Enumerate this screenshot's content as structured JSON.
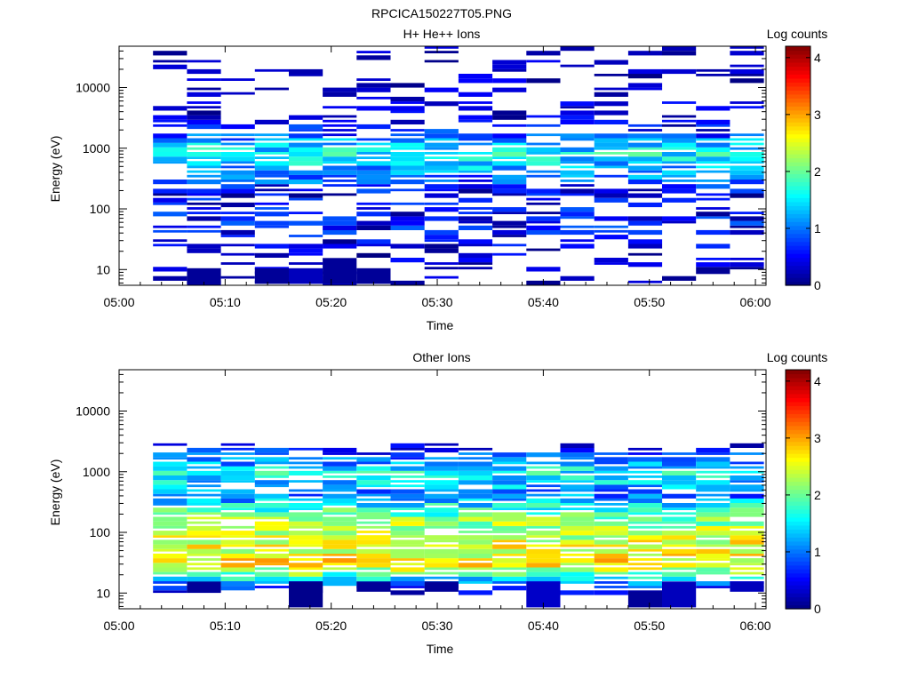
{
  "file_title": "RPCICA150227T05.PNG",
  "chart_data": [
    {
      "type": "heatmap",
      "title": "H+ He++ Ions",
      "xlabel": "Time",
      "ylabel": "Energy (eV)",
      "colorbar_label": "Log counts",
      "x_ticks": [
        "05:00",
        "05:10",
        "05:20",
        "05:30",
        "05:40",
        "05:50",
        "06:00"
      ],
      "xlim_minutes": [
        0,
        61
      ],
      "y_scale": "log",
      "y_ticks": [
        10,
        100,
        1000,
        10000
      ],
      "ylim": [
        5.5,
        48000
      ],
      "colorbar_ticks": [
        0,
        1,
        2,
        3,
        4
      ],
      "clim": [
        0,
        4.2
      ],
      "colormap": "jet",
      "time_bins_minutes": [
        3.2,
        6.4,
        9.6,
        12.8,
        16.0,
        19.2,
        22.4,
        25.6,
        28.8,
        32.0,
        35.2,
        38.4,
        41.6,
        44.8,
        48.0,
        51.2,
        54.4,
        57.6,
        60.8
      ],
      "energy_profile": {
        "energy_ev": [
          5.5,
          11,
          18,
          28,
          45,
          70,
          110,
          180,
          300,
          500,
          800,
          1200,
          1800,
          3000,
          5000,
          8000,
          13000,
          20000,
          30000,
          48000
        ],
        "log_counts": [
          0.0,
          0.1,
          0.2,
          0.3,
          0.5,
          0.5,
          0.45,
          0.4,
          0.9,
          1.3,
          1.6,
          1.3,
          0.6,
          0.25,
          0.15,
          0.1,
          0.08,
          0.07,
          0.07,
          0.0
        ]
      },
      "notes_low_energy_patches": [
        {
          "t_start": 6.4,
          "t_end": 9.6,
          "e_low": 5.8,
          "e_high": 10.5,
          "value": 0.1
        },
        {
          "t_start": 12.8,
          "t_end": 16.0,
          "e_low": 5.8,
          "e_high": 10.5,
          "value": 0.1
        },
        {
          "t_start": 16.0,
          "t_end": 19.2,
          "e_low": 5.8,
          "e_high": 10.5,
          "value": 0.25
        },
        {
          "t_start": 19.2,
          "t_end": 22.4,
          "e_low": 5.8,
          "e_high": 15.5,
          "value": 0.1
        },
        {
          "t_start": 22.4,
          "t_end": 25.6,
          "e_low": 5.8,
          "e_high": 10.5,
          "value": 0.1
        }
      ]
    },
    {
      "type": "heatmap",
      "title": "Other Ions",
      "xlabel": "Time",
      "ylabel": "Energy (eV)",
      "colorbar_label": "Log counts",
      "x_ticks": [
        "05:00",
        "05:10",
        "05:20",
        "05:30",
        "05:40",
        "05:50",
        "06:00"
      ],
      "xlim_minutes": [
        0,
        61
      ],
      "y_scale": "log",
      "y_ticks": [
        10,
        100,
        1000,
        10000
      ],
      "ylim": [
        5.5,
        48000
      ],
      "colorbar_ticks": [
        0,
        1,
        2,
        3,
        4
      ],
      "clim": [
        0,
        4.2
      ],
      "colormap": "jet",
      "time_bins_minutes": [
        3.2,
        6.4,
        9.6,
        12.8,
        16.0,
        19.2,
        22.4,
        25.6,
        28.8,
        32.0,
        35.2,
        38.4,
        41.6,
        44.8,
        48.0,
        51.2,
        54.4,
        57.6,
        60.8
      ],
      "energy_profile": {
        "energy_ev": [
          10,
          16,
          22,
          30,
          45,
          70,
          100,
          150,
          250,
          400,
          700,
          1000,
          1500,
          2200,
          2800
        ],
        "log_counts": [
          0.2,
          1.3,
          2.2,
          2.7,
          2.5,
          2.5,
          2.3,
          2.2,
          1.7,
          1.0,
          1.4,
          1.6,
          1.0,
          0.6,
          0.1
        ]
      },
      "notes_low_energy_patches": [
        {
          "t_start": 6.4,
          "t_end": 9.6,
          "e_low": 10.5,
          "e_high": 15.5,
          "value": 0.1
        },
        {
          "t_start": 16.0,
          "t_end": 19.2,
          "e_low": 5.8,
          "e_high": 15.5,
          "value": 0.05
        },
        {
          "t_start": 22.4,
          "t_end": 25.6,
          "e_low": 10.5,
          "e_high": 15.5,
          "value": 0.1
        },
        {
          "t_start": 28.8,
          "t_end": 32.0,
          "e_low": 10.5,
          "e_high": 15.5,
          "value": 0.1
        },
        {
          "t_start": 38.4,
          "t_end": 41.6,
          "e_low": 5.8,
          "e_high": 15.5,
          "value": 0.3
        },
        {
          "t_start": 48.0,
          "t_end": 51.2,
          "e_low": 5.8,
          "e_high": 10.5,
          "value": 0.1
        },
        {
          "t_start": 51.2,
          "t_end": 54.4,
          "e_low": 5.8,
          "e_high": 15.5,
          "value": 0.25
        },
        {
          "t_start": 57.6,
          "t_end": 60.8,
          "e_low": 10.5,
          "e_high": 15.5,
          "value": 0.25
        }
      ]
    }
  ]
}
